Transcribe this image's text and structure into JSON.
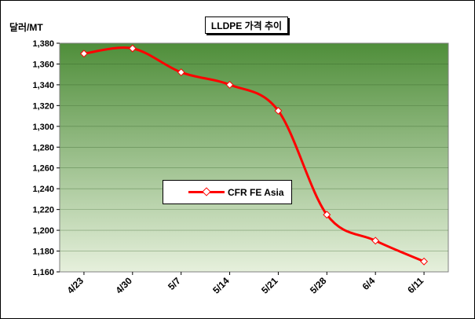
{
  "chart_data": {
    "type": "line",
    "title": "LLDPE 가격 추이",
    "ylabel": "달러/MT",
    "xlabel": "",
    "categories": [
      "4/23",
      "4/30",
      "5/7",
      "5/14",
      "5/21",
      "5/28",
      "6/4",
      "6/11"
    ],
    "series": [
      {
        "name": "CFR FE Asia",
        "values": [
          1370,
          1375,
          1352,
          1340,
          1315,
          1215,
          1190,
          1170
        ]
      }
    ],
    "ylim": [
      1160,
      1380
    ],
    "yticks": [
      "1,380",
      "1,360",
      "1,340",
      "1,320",
      "1,300",
      "1,280",
      "1,260",
      "1,240",
      "1,220",
      "1,200",
      "1,180",
      "1,160"
    ],
    "legend": "center-left",
    "grid": "horizontal",
    "colors": {
      "line": "#ff0000",
      "plot_top": "#4f8e3a",
      "plot_bottom": "#e6f0dc"
    }
  }
}
